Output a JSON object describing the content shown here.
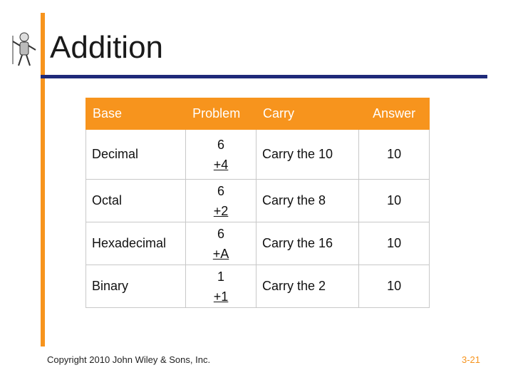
{
  "header": {
    "title": "Addition"
  },
  "table": {
    "columns": [
      "Base",
      "Problem",
      "Carry",
      "Answer"
    ],
    "rows": [
      {
        "base": "Decimal",
        "problem": {
          "top": "6",
          "bottom": "+4"
        },
        "carry": "Carry the 10",
        "answer": "10"
      },
      {
        "base": "Octal",
        "problem": {
          "top": "6",
          "bottom": "+2"
        },
        "carry": "Carry the 8",
        "answer": "10"
      },
      {
        "base": "Hexadecimal",
        "problem": {
          "top": "6",
          "bottom": "+A"
        },
        "carry": "Carry the 16",
        "answer": "10"
      },
      {
        "base": "Binary",
        "problem": {
          "top": "1",
          "bottom": "+1"
        },
        "carry": "Carry the 2",
        "answer": "10"
      }
    ]
  },
  "footer": {
    "copyright": "Copyright 2010 John Wiley & Sons, Inc.",
    "page": "3-21"
  }
}
